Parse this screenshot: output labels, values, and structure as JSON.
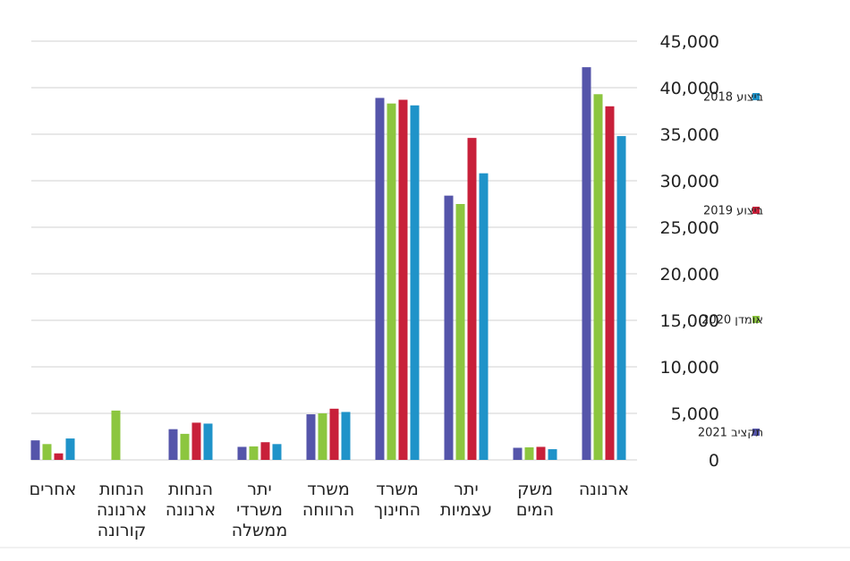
{
  "chart_data": {
    "type": "bar",
    "title": "",
    "xlabel": "",
    "ylabel": "",
    "ylim": [
      0,
      45000
    ],
    "yticks": [
      "0",
      "5,000",
      "10,000",
      "15,000",
      "20,000",
      "25,000",
      "30,000",
      "35,000",
      "40,000",
      "45,000"
    ],
    "ytick_values": [
      0,
      5000,
      10000,
      15000,
      20000,
      25000,
      30000,
      35000,
      40000,
      45000
    ],
    "grid": true,
    "legend_position": "right",
    "categories": [
      {
        "lines": [
          "ארנונה"
        ]
      },
      {
        "lines": [
          "משק",
          "המים"
        ]
      },
      {
        "lines": [
          "יתר",
          "עצמיות"
        ]
      },
      {
        "lines": [
          "משרד",
          "החינוך"
        ]
      },
      {
        "lines": [
          "משרד",
          "הרווחה"
        ]
      },
      {
        "lines": [
          "יתר",
          "משרדי",
          "ממשלה"
        ]
      },
      {
        "lines": [
          "הנחות",
          "ארנונה"
        ]
      },
      {
        "lines": [
          "הנחות",
          "ארנונה",
          "קורונה"
        ]
      },
      {
        "lines": [
          "אחרים"
        ]
      }
    ],
    "series": [
      {
        "name": "תקציב 2021",
        "color": "#5555aa",
        "values": [
          42200,
          1300,
          28400,
          38900,
          4900,
          1400,
          3300,
          0,
          2100
        ]
      },
      {
        "name": "אומדן 2020",
        "color": "#8cc63f",
        "values": [
          39300,
          1350,
          27500,
          38300,
          5000,
          1450,
          2800,
          5300,
          1700
        ]
      },
      {
        "name": "ביצוע 2019",
        "color": "#c8203a",
        "values": [
          38000,
          1400,
          34600,
          38700,
          5500,
          1900,
          4000,
          0,
          700
        ]
      },
      {
        "name": "ביצוע 2018",
        "color": "#1f93c9",
        "values": [
          34800,
          1150,
          30800,
          38100,
          5150,
          1700,
          3900,
          0,
          2300
        ]
      }
    ],
    "legend_order": [
      "ביצוע 2018",
      "ביצוע 2019",
      "אומדן 2020",
      "תקציב 2021"
    ]
  }
}
